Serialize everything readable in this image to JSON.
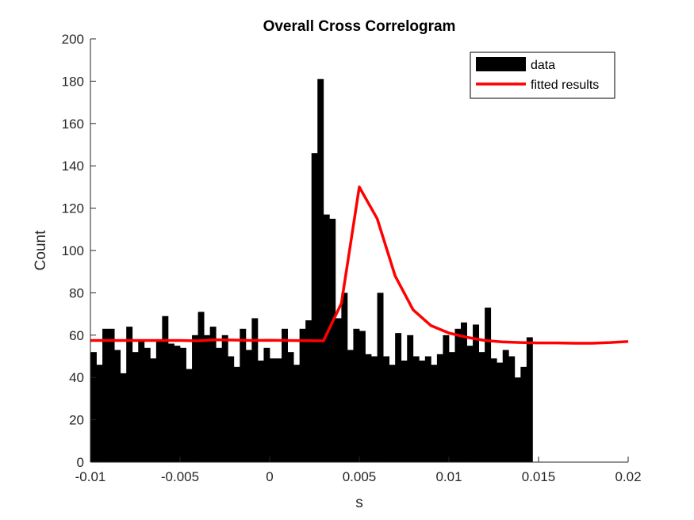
{
  "chart_data": {
    "type": "bar",
    "title": "Overall Cross Correlogram",
    "xlabel": "s",
    "ylabel": "Count",
    "xlim": [
      -0.01,
      0.02
    ],
    "ylim": [
      0,
      200
    ],
    "xticks": [
      -0.01,
      -0.005,
      0,
      0.005,
      0.01,
      0.015,
      0.02
    ],
    "xtick_labels": [
      "-0.01",
      "-0.005",
      "0",
      "0.005",
      "0.01",
      "0.015",
      "0.02"
    ],
    "yticks": [
      0,
      20,
      40,
      60,
      80,
      100,
      120,
      140,
      160,
      180,
      200
    ],
    "ytick_labels": [
      "0",
      "20",
      "40",
      "60",
      "80",
      "100",
      "120",
      "140",
      "160",
      "180",
      "200"
    ],
    "grid": false,
    "legend_placement": "top-right",
    "bin_start": -0.01,
    "bin_width": 0.0003333,
    "series": [
      {
        "name": "data",
        "kind": "histogram",
        "color": "#000000",
        "values": [
          52,
          46,
          63,
          63,
          53,
          42,
          64,
          52,
          58,
          54,
          49,
          57,
          69,
          56,
          55,
          54,
          44,
          60,
          71,
          60,
          64,
          54,
          60,
          50,
          45,
          63,
          53,
          68,
          48,
          54,
          49,
          49,
          63,
          52,
          46,
          63,
          67,
          146,
          181,
          117,
          115,
          68,
          80,
          53,
          63,
          62,
          51,
          50,
          80,
          50,
          46,
          61,
          48,
          60,
          50,
          48,
          50,
          46,
          51,
          60,
          52,
          63,
          66,
          55,
          65,
          52,
          73,
          49,
          47,
          53,
          50,
          40,
          45,
          59
        ]
      },
      {
        "name": "fitted results",
        "kind": "line",
        "color": "#ff0000",
        "x": [
          -0.01,
          -0.009,
          -0.008,
          -0.007,
          -0.006,
          -0.005,
          -0.004,
          -0.003,
          -0.002,
          -0.001,
          0,
          0.001,
          0.002,
          0.003,
          0.004,
          0.005,
          0.006,
          0.007,
          0.008,
          0.009,
          0.01,
          0.011,
          0.012,
          0.013,
          0.014,
          0.015,
          0.016,
          0.017,
          0.018,
          0.019,
          0.02
        ],
        "y": [
          57.5,
          57.5,
          57.5,
          57.5,
          57.5,
          57.5,
          57.3,
          57.8,
          57.7,
          57.5,
          57.6,
          57.5,
          57.4,
          57.3,
          75,
          130,
          115,
          88,
          72,
          64.5,
          61,
          59,
          57.5,
          56.8,
          56.5,
          56.3,
          56.3,
          56.2,
          56.2,
          56.5,
          57
        ]
      }
    ]
  }
}
